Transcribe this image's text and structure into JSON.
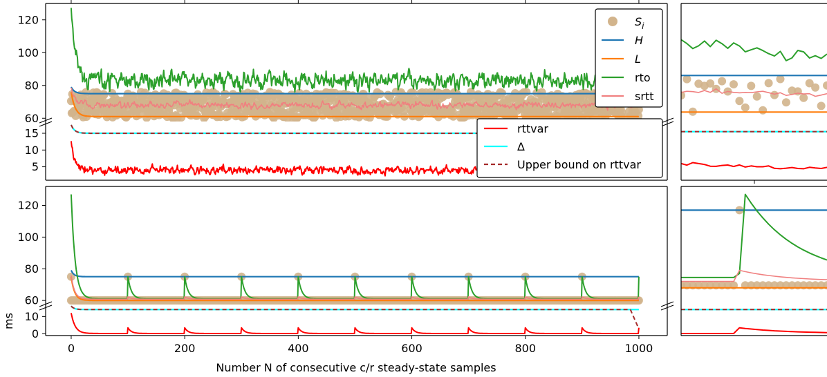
{
  "chart_data": {
    "type": "line",
    "xlabel": "Number N of consecutive c/r steady-state samples",
    "ylabel": "ms",
    "xlim": [
      -45,
      1050
    ],
    "x_ticks": [
      0,
      200,
      400,
      600,
      800,
      1000
    ],
    "colors": {
      "S": "#d2b48c",
      "H": "#1f77b4",
      "L": "#ff7f0e",
      "rto": "#2ca02c",
      "srtt": "#f08080",
      "rttvar": "#ff0000",
      "delta": "#00ffff",
      "upper": "#a52a2a"
    },
    "legend_top": [
      {
        "key": "S",
        "label": "S",
        "sub": "i",
        "kind": "marker"
      },
      {
        "key": "H",
        "label": "H",
        "sub": "",
        "kind": "line"
      },
      {
        "key": "L",
        "label": "L",
        "sub": "",
        "kind": "line"
      },
      {
        "key": "rto",
        "label": "rto",
        "sub": "",
        "kind": "line"
      },
      {
        "key": "srtt",
        "label": "srtt",
        "sub": "",
        "kind": "line"
      }
    ],
    "legend_bottom": [
      {
        "key": "rttvar",
        "label": "rttvar",
        "kind": "line"
      },
      {
        "key": "delta",
        "label": "Δ",
        "kind": "line"
      },
      {
        "key": "upper",
        "label": "Upper bound on rttvar",
        "kind": "dashed"
      }
    ],
    "top_scenario": {
      "upper_ylim": [
        58,
        130
      ],
      "upper_ticks": [
        60,
        80,
        100,
        120
      ],
      "lower_ylim": [
        1,
        18.5
      ],
      "lower_ticks": [
        5,
        10,
        15
      ],
      "H": 75,
      "L": 61,
      "S_range": [
        60,
        76
      ],
      "rto_steady_mean": 83,
      "srtt_steady_mean": 68,
      "rttvar_steady_mean": 4,
      "delta": 15,
      "rto_start": 125,
      "rttvar_start": 12
    },
    "bottom_scenario": {
      "upper_ylim": [
        57,
        132
      ],
      "upper_ticks": [
        60,
        80,
        100,
        120
      ],
      "lower_ylim": [
        -1,
        16.5
      ],
      "lower_ticks": [
        0,
        10
      ],
      "H": 75,
      "L": 60,
      "spike_every": 100,
      "spike_value": 75,
      "rto_steady": 61,
      "rto_spike_peak": 75,
      "rttvar_spike_peak": 3.5,
      "delta": 14,
      "rto_start": 127,
      "rttvar_start": 12
    }
  }
}
